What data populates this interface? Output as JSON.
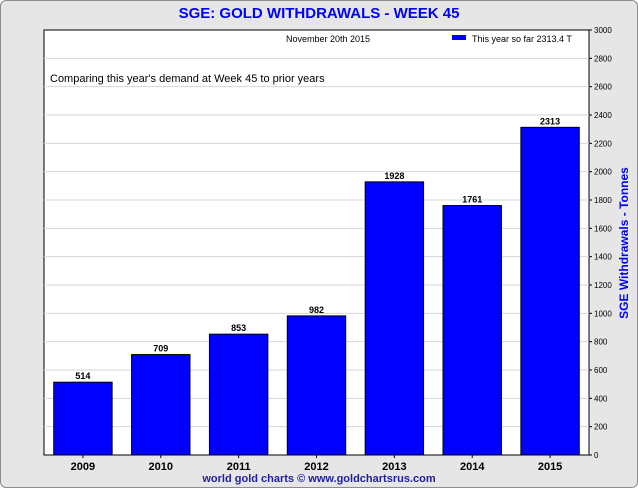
{
  "chart_data": {
    "type": "bar",
    "title": "SGE: GOLD WITHDRAWALS - WEEK 45",
    "subtitle": "November 20th 2015",
    "annotation": "Comparing this year's demand at Week 45 to prior years",
    "legend": {
      "label": "This year so far 2313.4 T",
      "color": "#0000ff",
      "placement": "top-right"
    },
    "categories": [
      "2009",
      "2010",
      "2011",
      "2012",
      "2013",
      "2014",
      "2015"
    ],
    "values": [
      514,
      709,
      853,
      982,
      1928,
      1761,
      2313
    ],
    "data_labels": [
      "514",
      "709",
      "853",
      "982",
      "1928",
      "1761",
      "2313"
    ],
    "ylabel": "SGE Withdrawals - Tonnes",
    "ylabel_side": "right",
    "ylim": [
      0,
      3000
    ],
    "yticks": [
      0,
      200,
      400,
      600,
      800,
      1000,
      1200,
      1400,
      1600,
      1800,
      2000,
      2200,
      2400,
      2600,
      2800,
      3000
    ],
    "grid": true,
    "bar_color": "#0000ff"
  },
  "footer": "world gold charts © www.goldchartsrus.com"
}
